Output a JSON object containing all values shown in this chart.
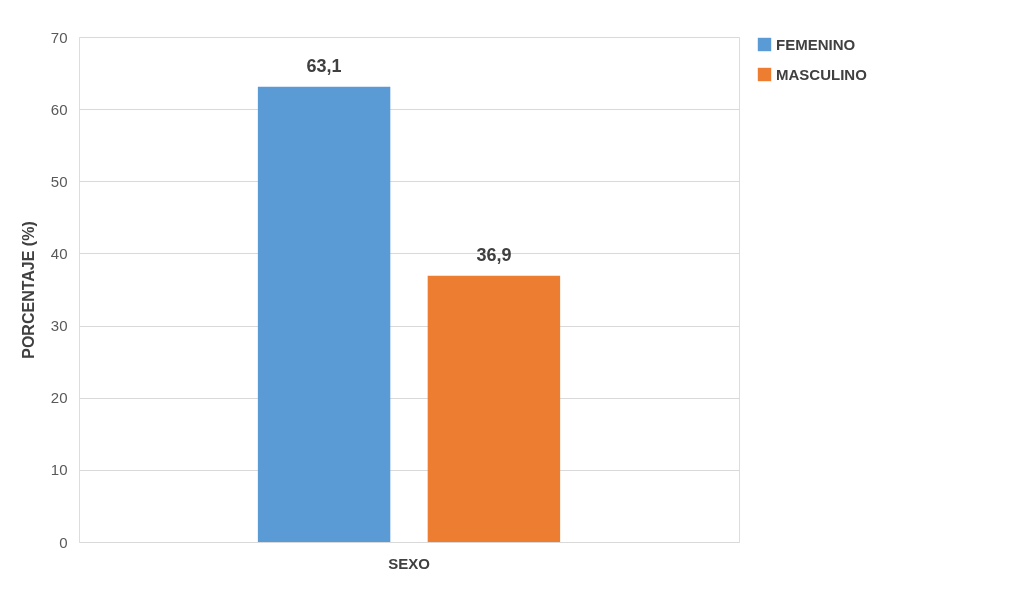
{
  "chart_data": {
    "type": "bar",
    "ylabel": "PORCENTAJE  (%)",
    "categories": [
      "SEXO"
    ],
    "series": [
      {
        "name": "FEMENINO",
        "color": "#5b9bd5",
        "values": [
          63.1
        ],
        "value_labels": [
          "63,1"
        ]
      },
      {
        "name": "MASCULINO",
        "color": "#ed7d31",
        "values": [
          36.9
        ],
        "value_labels": [
          "36,9"
        ]
      }
    ],
    "ylim": [
      0,
      70
    ],
    "yticks": [
      0,
      10,
      20,
      30,
      40,
      50,
      60,
      70
    ],
    "grid": "y",
    "legend": "right"
  }
}
